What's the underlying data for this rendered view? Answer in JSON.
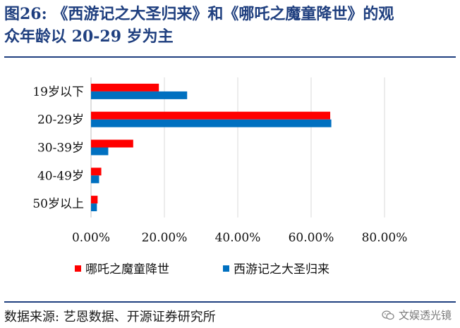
{
  "header": {
    "title_line1": "图26: 《西游记之大圣归来》和《哪吒之魔童降世》的观",
    "title_line2": "众年龄以 20-29 岁为主"
  },
  "footer": {
    "source": "数据来源: 艺恩数据、开源证券研究所",
    "watermark": "文娱透光镜",
    "watermark_icon": "wechat-icon"
  },
  "colors": {
    "series1": "#ff0000",
    "series2": "#0070c0",
    "title": "#1f3f7f"
  },
  "chart_data": {
    "type": "bar",
    "orientation": "horizontal",
    "title": "《西游记之大圣归来》和《哪吒之魔童降世》的观众年龄以 20-29 岁为主",
    "categories": [
      "19岁以下",
      "20-29岁",
      "30-39岁",
      "40-49岁",
      "50岁以上"
    ],
    "series": [
      {
        "name": "哪吒之魔童降世",
        "values": [
          0.185,
          0.652,
          0.115,
          0.028,
          0.018
        ]
      },
      {
        "name": "西游记之大圣归来",
        "values": [
          0.262,
          0.655,
          0.047,
          0.022,
          0.016
        ]
      }
    ],
    "xlim": [
      0,
      0.8
    ],
    "xticks": [
      0,
      0.2,
      0.4,
      0.6,
      0.8
    ],
    "xtick_labels": [
      "0.00%",
      "20.00%",
      "40.00%",
      "60.00%",
      "80.00%"
    ],
    "legend_position": "bottom",
    "grid": true
  }
}
